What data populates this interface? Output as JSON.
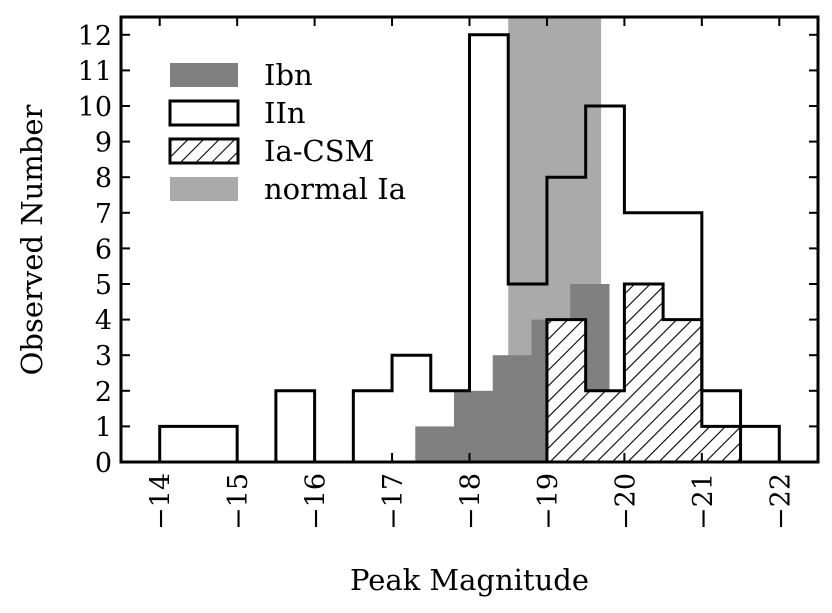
{
  "chart_data": {
    "type": "histogram",
    "xlabel": "Peak Magnitude",
    "ylabel": "Observed Number",
    "xlim": [
      -13.5,
      -22.5
    ],
    "ylim": [
      0,
      12.5
    ],
    "x_ticks": [
      -14,
      -15,
      -16,
      -17,
      -18,
      -19,
      -20,
      -21,
      -22
    ],
    "x_tick_labels": [
      "−14",
      "−15",
      "−16",
      "−17",
      "−18",
      "−19",
      "−20",
      "−21",
      "−22"
    ],
    "y_ticks": [
      0,
      1,
      2,
      3,
      4,
      5,
      6,
      7,
      8,
      9,
      10,
      11,
      12
    ],
    "y_tick_labels": [
      "0",
      "1",
      "2",
      "3",
      "4",
      "5",
      "6",
      "7",
      "8",
      "9",
      "10",
      "11",
      "12"
    ],
    "series": [
      {
        "name": "normal Ia",
        "style": "band",
        "color": "#aaaaaa",
        "range": [
          -18.5,
          -19.7
        ],
        "value": 12.5
      },
      {
        "name": "Ibn",
        "style": "filled-steps",
        "color": "#808080",
        "edges": [
          -17.3,
          -17.8,
          -18.3,
          -18.5,
          -18.8,
          -19.0,
          -19.3,
          -19.8,
          -20.3,
          -20.8
        ],
        "counts": [
          1,
          2,
          3,
          3,
          4,
          4,
          5,
          2,
          2
        ]
      },
      {
        "name": "IIn",
        "style": "open-steps",
        "color": "#000000",
        "edges": [
          -14,
          -14.5,
          -15,
          -15.5,
          -16,
          -16.5,
          -17,
          -17.5,
          -18,
          -18.5,
          -19,
          -19.5,
          -20,
          -20.5,
          -21,
          -21.5,
          -22
        ],
        "counts": [
          1,
          1,
          0,
          2,
          0,
          2,
          3,
          2,
          12,
          5,
          8,
          10,
          7,
          7,
          2,
          1
        ]
      },
      {
        "name": "Ia-CSM",
        "style": "hatched-steps",
        "color": "#000000",
        "edges": [
          -19,
          -19.5,
          -20,
          -20.5,
          -21,
          -21.5
        ],
        "counts": [
          4,
          2,
          5,
          4,
          1
        ]
      }
    ],
    "legend": {
      "position": "upper-left",
      "entries": [
        "Ibn",
        "IIn",
        "Ia-CSM",
        "normal Ia"
      ]
    }
  }
}
